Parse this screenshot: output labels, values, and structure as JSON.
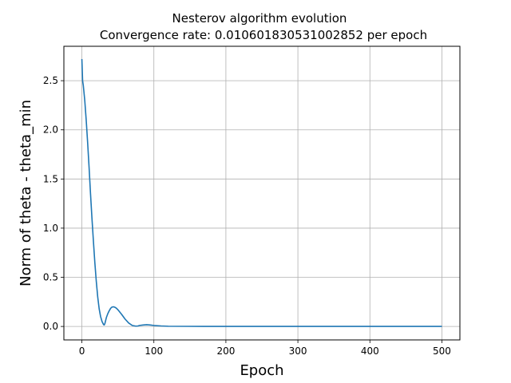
{
  "chart_data": {
    "type": "line",
    "title_line1": "Nesterov algorithm evolution",
    "title_line2": "Convergence rate: 0.010601830531002852 per epoch",
    "xlabel": "Epoch",
    "ylabel": "Norm of  theta - theta_min",
    "xlim": [
      -25,
      525
    ],
    "ylim": [
      -0.137,
      2.85
    ],
    "x_ticks": [
      0,
      100,
      200,
      300,
      400,
      500
    ],
    "x_tick_labels": [
      "0",
      "100",
      "200",
      "300",
      "400",
      "500"
    ],
    "y_ticks": [
      0.0,
      0.5,
      1.0,
      1.5,
      2.0,
      2.5
    ],
    "y_tick_labels": [
      "0.0",
      "0.5",
      "1.0",
      "1.5",
      "2.0",
      "2.5"
    ],
    "grid": true,
    "series": [
      {
        "color": "#1f77b4",
        "x": [
          0,
          1,
          2,
          4,
          6,
          8,
          10,
          12,
          14,
          16,
          18,
          20,
          22,
          24,
          26,
          28,
          30,
          31,
          32,
          33,
          34,
          36,
          38,
          40,
          42,
          44,
          46,
          48,
          50,
          55,
          60,
          65,
          70,
          75,
          78,
          80,
          85,
          90,
          95,
          100,
          110,
          120,
          150,
          200,
          300,
          400,
          500
        ],
        "y": [
          2.72,
          2.5,
          2.45,
          2.3,
          2.1,
          1.87,
          1.62,
          1.35,
          1.1,
          0.87,
          0.65,
          0.46,
          0.3,
          0.18,
          0.1,
          0.05,
          0.02,
          0.015,
          0.03,
          0.06,
          0.09,
          0.13,
          0.16,
          0.185,
          0.198,
          0.2,
          0.195,
          0.185,
          0.17,
          0.125,
          0.075,
          0.035,
          0.01,
          0.003,
          0.005,
          0.01,
          0.015,
          0.018,
          0.015,
          0.01,
          0.005,
          0.002,
          0.001,
          0.0005,
          0.0002,
          0.0001,
          0.0001
        ]
      }
    ]
  }
}
